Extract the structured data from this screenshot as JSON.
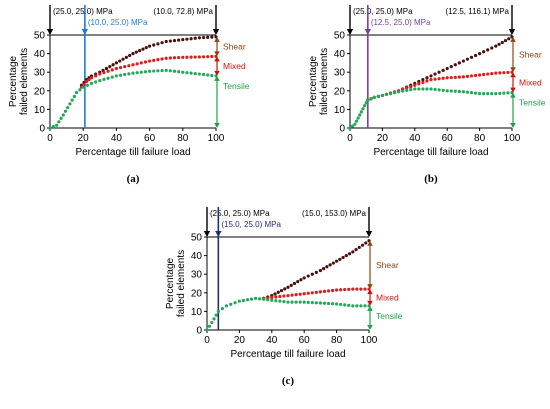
{
  "chart_data": [
    {
      "type": "scatter",
      "panel_label": "(a)",
      "xlabel": "Percentage till failure load",
      "ylabel_lines": [
        "Percentage",
        "failed elements"
      ],
      "xlim": [
        0,
        100
      ],
      "ylim": [
        0,
        50
      ],
      "xticks": [
        "0",
        "20",
        "40",
        "60",
        "80",
        "100"
      ],
      "yticks": [
        "0",
        "10",
        "20",
        "30",
        "40",
        "50"
      ],
      "annotations": {
        "start": "(25.0, 25.0) MPa",
        "mid": "(10.0, 25.0) MPa",
        "mid_color": "#1b7fd1",
        "mid_x": 21,
        "end": "(10.0, 72.8) MPa"
      },
      "bands": [
        {
          "name": "Shear",
          "color": "#8b4513",
          "from": 38.5,
          "to": 49
        },
        {
          "name": "Mixed",
          "color": "#d01010",
          "from": 28,
          "to": 38.5
        },
        {
          "name": "Tensile",
          "color": "#21a04a",
          "from": 0,
          "to": 28
        }
      ],
      "series": [
        {
          "name": "Shear",
          "color": "#4a1010",
          "points": [
            [
              19,
              23
            ],
            [
              22,
              26
            ],
            [
              25,
              28
            ],
            [
              30,
              30
            ],
            [
              40,
              35
            ],
            [
              50,
              40
            ],
            [
              60,
              44
            ],
            [
              70,
              46.5
            ],
            [
              80,
              47.5
            ],
            [
              90,
              48.5
            ],
            [
              100,
              49
            ]
          ]
        },
        {
          "name": "Mixed",
          "color": "#e01b1b",
          "points": [
            [
              19,
              22
            ],
            [
              22,
              25
            ],
            [
              25,
              27
            ],
            [
              30,
              29
            ],
            [
              40,
              32
            ],
            [
              50,
              34
            ],
            [
              60,
              36
            ],
            [
              70,
              37.5
            ],
            [
              80,
              38
            ],
            [
              90,
              38.2
            ],
            [
              100,
              38.5
            ]
          ]
        },
        {
          "name": "Tensile",
          "color": "#22a857",
          "points": [
            [
              0,
              0
            ],
            [
              4,
              1.5
            ],
            [
              8,
              7
            ],
            [
              12,
              13
            ],
            [
              16,
              19
            ],
            [
              20,
              22
            ],
            [
              25,
              24
            ],
            [
              30,
              25.5
            ],
            [
              40,
              28
            ],
            [
              50,
              29.5
            ],
            [
              60,
              30.5
            ],
            [
              70,
              31
            ],
            [
              80,
              30
            ],
            [
              90,
              29
            ],
            [
              100,
              28
            ]
          ]
        }
      ]
    },
    {
      "type": "scatter",
      "panel_label": "(b)",
      "xlabel": "Percentage till failure load",
      "ylabel_lines": [
        "Percentage",
        "failed elements"
      ],
      "xlim": [
        0,
        100
      ],
      "ylim": [
        0,
        50
      ],
      "xticks": [
        "0",
        "20",
        "40",
        "60",
        "80",
        "100"
      ],
      "yticks": [
        "0",
        "10",
        "20",
        "30",
        "40",
        "50"
      ],
      "annotations": {
        "start": "(25.0, 25.0) MPa",
        "mid": "(12.5, 25.0) MPa",
        "mid_color": "#7b3fa0",
        "mid_x": 11,
        "end": "(12.5, 116.1) MPa"
      },
      "bands": [
        {
          "name": "Shear",
          "color": "#8b4513",
          "from": 30,
          "to": 49
        },
        {
          "name": "Mixed",
          "color": "#d01010",
          "from": 19,
          "to": 30
        },
        {
          "name": "Tensile",
          "color": "#21a04a",
          "from": 0,
          "to": 19
        }
      ],
      "series": [
        {
          "name": "Shear",
          "color": "#4a1010",
          "points": [
            [
              11,
              15
            ],
            [
              15,
              16.5
            ],
            [
              20,
              17.5
            ],
            [
              30,
              20
            ],
            [
              40,
              24
            ],
            [
              50,
              28
            ],
            [
              60,
              32
            ],
            [
              70,
              36
            ],
            [
              80,
              40
            ],
            [
              90,
              44
            ],
            [
              100,
              49
            ]
          ]
        },
        {
          "name": "Mixed",
          "color": "#e01b1b",
          "points": [
            [
              11,
              15
            ],
            [
              15,
              16.5
            ],
            [
              20,
              17.5
            ],
            [
              30,
              20
            ],
            [
              40,
              23
            ],
            [
              50,
              26
            ],
            [
              60,
              27
            ],
            [
              70,
              27.5
            ],
            [
              80,
              28.5
            ],
            [
              90,
              29.5
            ],
            [
              100,
              30
            ]
          ]
        },
        {
          "name": "Tensile",
          "color": "#22a857",
          "points": [
            [
              0,
              0
            ],
            [
              3,
              2
            ],
            [
              6,
              7
            ],
            [
              9,
              12
            ],
            [
              11,
              15
            ],
            [
              15,
              16.5
            ],
            [
              20,
              17.5
            ],
            [
              30,
              19.5
            ],
            [
              40,
              21
            ],
            [
              50,
              21
            ],
            [
              60,
              20
            ],
            [
              70,
              19.5
            ],
            [
              80,
              18.5
            ],
            [
              90,
              18.5
            ],
            [
              100,
              19
            ]
          ]
        }
      ]
    },
    {
      "type": "scatter",
      "panel_label": "(c)",
      "xlabel": "Percentage till failure load",
      "ylabel_lines": [
        "Percentage",
        "failed elements"
      ],
      "xlim": [
        0,
        100
      ],
      "ylim": [
        0,
        50
      ],
      "xticks": [
        "0",
        "20",
        "40",
        "60",
        "80",
        "100"
      ],
      "yticks": [
        "0",
        "10",
        "20",
        "30",
        "40",
        "50"
      ],
      "annotations": {
        "start": "(25.0, 25.0) MPa",
        "mid": "(15.0, 25.0) MPa",
        "mid_color": "#1f2f7a",
        "mid_x": 7,
        "end": "(15.0, 153.0) MPa"
      },
      "bands": [
        {
          "name": "Shear",
          "color": "#8b4513",
          "from": 22,
          "to": 48
        },
        {
          "name": "Mixed",
          "color": "#d01010",
          "from": 13,
          "to": 22
        },
        {
          "name": "Tensile",
          "color": "#21a04a",
          "from": 0,
          "to": 13
        }
      ],
      "series": [
        {
          "name": "Shear",
          "color": "#4a1010",
          "points": [
            [
              35,
              17
            ],
            [
              40,
              18.5
            ],
            [
              50,
              23
            ],
            [
              60,
              28
            ],
            [
              70,
              32
            ],
            [
              80,
              37
            ],
            [
              90,
              42
            ],
            [
              100,
              48
            ]
          ]
        },
        {
          "name": "Mixed",
          "color": "#e01b1b",
          "points": [
            [
              35,
              17
            ],
            [
              40,
              17.5
            ],
            [
              50,
              18.5
            ],
            [
              60,
              19.5
            ],
            [
              70,
              20.5
            ],
            [
              80,
              21.5
            ],
            [
              90,
              22
            ],
            [
              100,
              22
            ]
          ]
        },
        {
          "name": "Tensile",
          "color": "#22a857",
          "points": [
            [
              0,
              0
            ],
            [
              3,
              4
            ],
            [
              7,
              10
            ],
            [
              12,
              13
            ],
            [
              20,
              15.5
            ],
            [
              30,
              17
            ],
            [
              40,
              16
            ],
            [
              50,
              15
            ],
            [
              60,
              15
            ],
            [
              70,
              14.5
            ],
            [
              80,
              14
            ],
            [
              90,
              13
            ],
            [
              100,
              13
            ]
          ]
        }
      ]
    }
  ]
}
